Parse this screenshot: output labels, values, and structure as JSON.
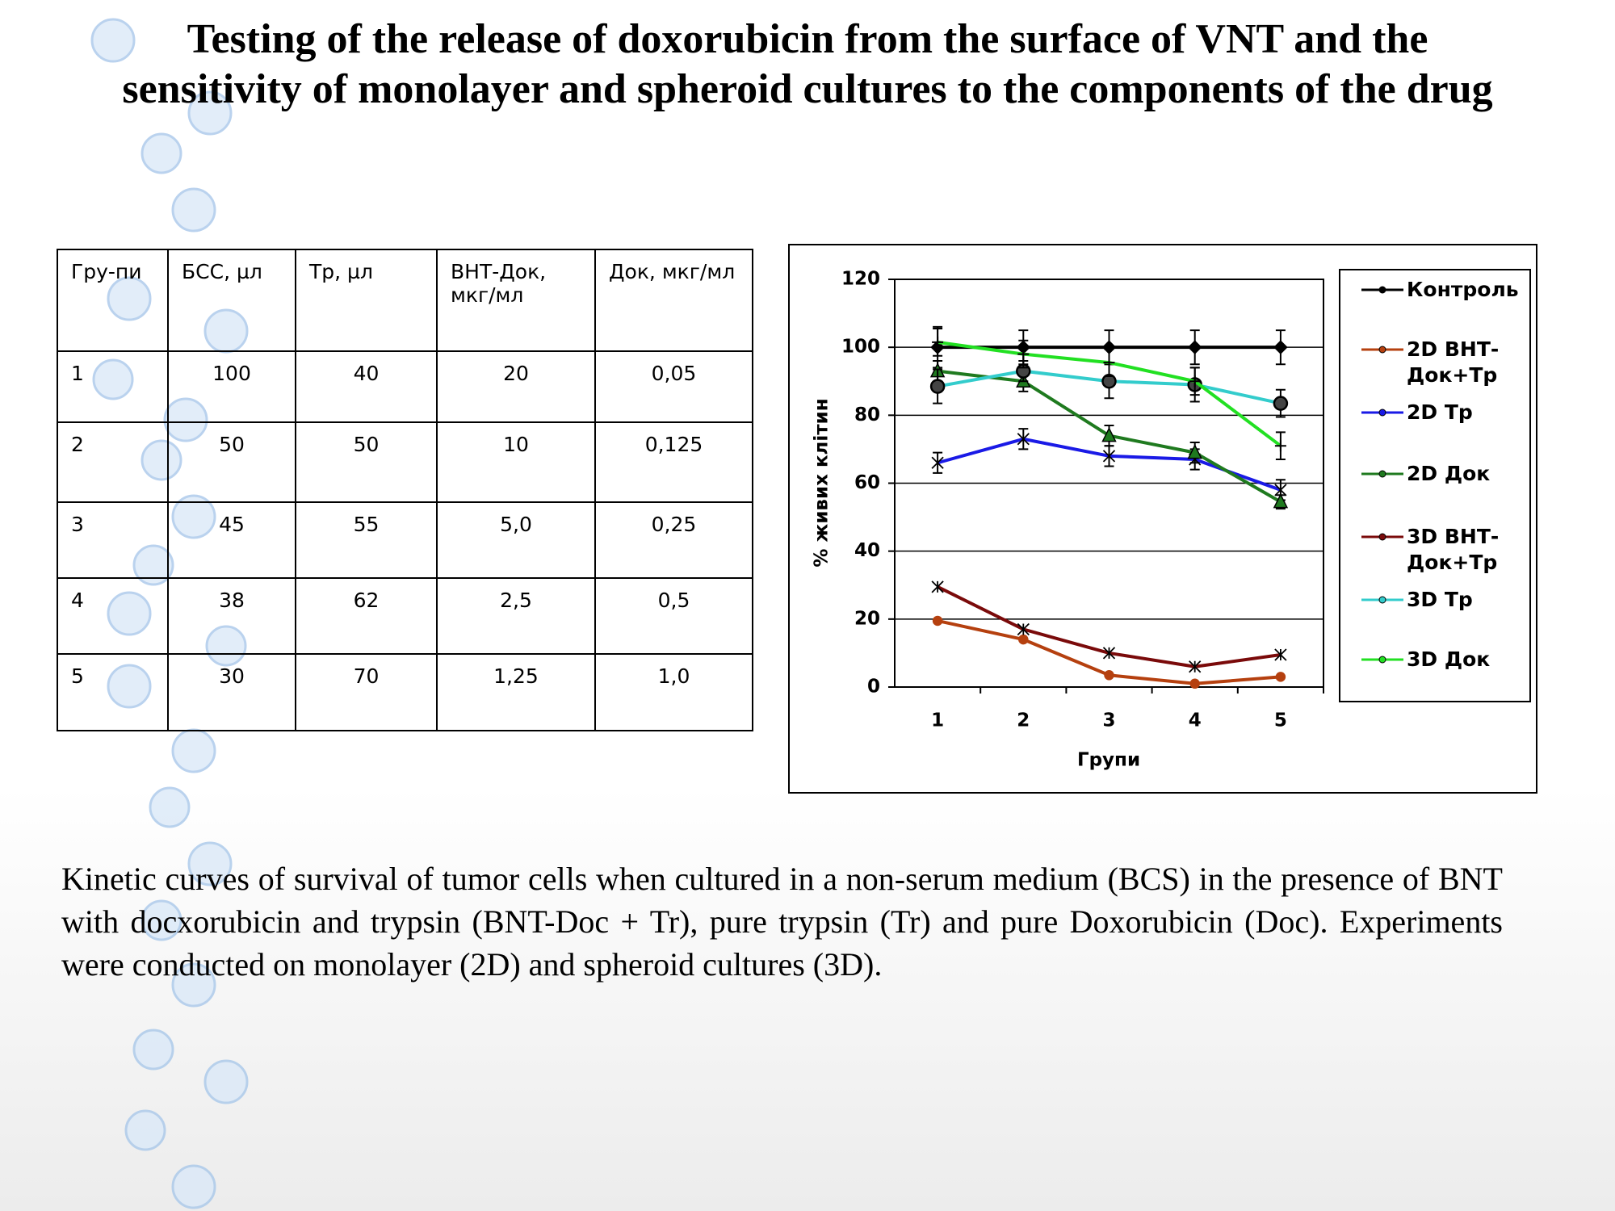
{
  "title": "Testing of the release of doxorubicin from the surface of VNT and the sensitivity of monolayer and spheroid cultures to the components of the drug",
  "table": {
    "headers": [
      "Гру-пи",
      "БСС, µл",
      "Тр, µл",
      "ВНТ-Док, мкг/мл",
      "Док, мкг/мл"
    ],
    "rows": [
      [
        "1",
        "100",
        "40",
        "20",
        "0,05"
      ],
      [
        "2",
        "50",
        "50",
        "10",
        "0,125"
      ],
      [
        "3",
        "45",
        "55",
        "5,0",
        "0,25"
      ],
      [
        "4",
        "38",
        "62",
        "2,5",
        "0,5"
      ],
      [
        "5",
        "30",
        "70",
        "1,25",
        "1,0"
      ]
    ]
  },
  "chart_data": {
    "type": "line",
    "x_label": "Групи",
    "y_label": "% живих клітин",
    "categories": [
      "1",
      "2",
      "3",
      "4",
      "5"
    ],
    "ylim": [
      0,
      120
    ],
    "yticks": [
      0,
      20,
      40,
      60,
      80,
      100,
      120
    ],
    "grid": true,
    "series": [
      {
        "name": "Контроль",
        "color": "#000000",
        "marker": "diamond",
        "values": [
          100,
          100,
          100,
          100,
          100
        ],
        "errors": [
          6,
          5,
          5,
          5,
          5
        ]
      },
      {
        "name": "2D ВНТ-Док+Тр",
        "color": "#b5400f",
        "marker": "circle",
        "values": [
          19.5,
          14,
          3.5,
          1,
          3
        ]
      },
      {
        "name": "2D Тр",
        "color": "#1a1ae6",
        "marker": "x",
        "values": [
          66,
          73,
          68,
          67,
          58
        ],
        "errors": [
          3,
          3,
          3,
          3,
          3
        ]
      },
      {
        "name": "2D Док",
        "color": "#1f7a1f",
        "marker": "triangle",
        "values": [
          93,
          90,
          74,
          69,
          54.5
        ],
        "errors": [
          3,
          3,
          3,
          3,
          2
        ]
      },
      {
        "name": "3D ВНТ-Док+Тр",
        "color": "#7a0a0a",
        "marker": "star",
        "values": [
          29.5,
          17,
          10,
          6,
          9.5
        ]
      },
      {
        "name": "3D Тр",
        "color": "#33cccc",
        "marker": "dot",
        "values": [
          88.5,
          93,
          90,
          89,
          83.5
        ],
        "errors": [
          5,
          3,
          5,
          5,
          4
        ]
      },
      {
        "name": "3D Док",
        "color": "#22e022",
        "marker": "plus",
        "values": [
          101.5,
          98,
          95.5,
          90,
          71
        ],
        "errors": [
          4,
          4,
          4,
          4,
          4
        ]
      }
    ]
  },
  "caption": "Kinetic curves of survival of tumor cells when cultured in a non-serum medium (BCS) in the presence of BNT with docxorubicin and trypsin (BNT-Doc + Tr), pure trypsin (Tr) and pure Doxorubicin (Doc). Experiments were conducted on monolayer (2D) and spheroid cultures (3D)."
}
